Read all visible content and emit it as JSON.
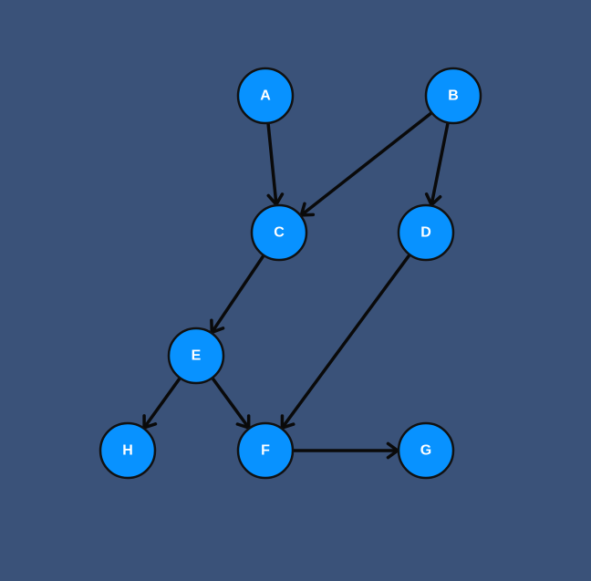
{
  "diagram": {
    "type": "directed-graph",
    "colors": {
      "background": "#3a5279",
      "node_fill": "#0892ff",
      "node_stroke": "#111111",
      "edge": "#0a0a0a",
      "label": "#ffffff"
    },
    "nodes": [
      {
        "id": "A",
        "label": "A"
      },
      {
        "id": "B",
        "label": "B"
      },
      {
        "id": "C",
        "label": "C"
      },
      {
        "id": "D",
        "label": "D"
      },
      {
        "id": "E",
        "label": "E"
      },
      {
        "id": "F",
        "label": "F"
      },
      {
        "id": "G",
        "label": "G"
      },
      {
        "id": "H",
        "label": "H"
      }
    ],
    "edges": [
      {
        "from": "A",
        "to": "C"
      },
      {
        "from": "B",
        "to": "C"
      },
      {
        "from": "B",
        "to": "D"
      },
      {
        "from": "C",
        "to": "E"
      },
      {
        "from": "D",
        "to": "F"
      },
      {
        "from": "E",
        "to": "H"
      },
      {
        "from": "E",
        "to": "F"
      },
      {
        "from": "F",
        "to": "G"
      }
    ]
  }
}
